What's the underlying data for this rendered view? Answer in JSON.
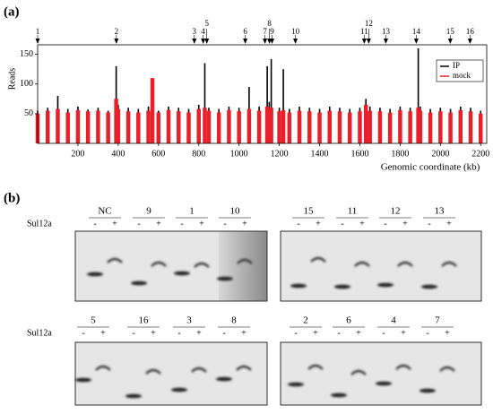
{
  "chart_data": {
    "type": "bar",
    "panel_label": "(a)",
    "xlabel": "Genomic coordinate (kb)",
    "ylabel": "Reads",
    "x": [
      0,
      50,
      100,
      150,
      200,
      250,
      300,
      350,
      390,
      400,
      450,
      500,
      550,
      570,
      600,
      650,
      700,
      750,
      800,
      830,
      850,
      900,
      950,
      1000,
      1050,
      1100,
      1140,
      1150,
      1160,
      1200,
      1220,
      1250,
      1300,
      1350,
      1400,
      1450,
      1500,
      1550,
      1600,
      1630,
      1650,
      1700,
      1750,
      1800,
      1850,
      1890,
      1900,
      1950,
      2000,
      2050,
      2100,
      2150,
      2200
    ],
    "series": [
      {
        "name": "IP",
        "color": "#000000",
        "values": [
          55,
          60,
          80,
          58,
          62,
          57,
          60,
          55,
          130,
          65,
          60,
          58,
          62,
          60,
          55,
          62,
          60,
          58,
          65,
          135,
          60,
          58,
          62,
          60,
          95,
          62,
          130,
          70,
          142,
          60,
          125,
          58,
          62,
          60,
          58,
          62,
          60,
          58,
          60,
          75,
          62,
          60,
          58,
          62,
          60,
          160,
          62,
          58,
          60,
          58,
          62,
          60,
          55
        ]
      },
      {
        "name": "mock",
        "color": "#e8202a",
        "values": [
          50,
          55,
          58,
          52,
          56,
          54,
          55,
          52,
          75,
          58,
          54,
          52,
          55,
          110,
          52,
          56,
          54,
          52,
          58,
          60,
          55,
          52,
          56,
          54,
          58,
          55,
          62,
          58,
          60,
          54,
          56,
          52,
          55,
          54,
          52,
          55,
          54,
          52,
          54,
          65,
          55,
          54,
          52,
          56,
          54,
          60,
          55,
          52,
          54,
          52,
          56,
          54,
          50
        ]
      }
    ],
    "markers": [
      {
        "label": "1",
        "x": 0
      },
      {
        "label": "2",
        "x": 391
      },
      {
        "label": "3",
        "x": 778
      },
      {
        "label": "4",
        "x": 822
      },
      {
        "label": "5",
        "x": 840
      },
      {
        "label": "6",
        "x": 1031
      },
      {
        "label": "7",
        "x": 1129
      },
      {
        "label": "8",
        "x": 1151
      },
      {
        "label": "9",
        "x": 1164
      },
      {
        "label": "10",
        "x": 1280
      },
      {
        "label": "11",
        "x": 1622
      },
      {
        "label": "12",
        "x": 1644
      },
      {
        "label": "13",
        "x": 1729
      },
      {
        "label": "14",
        "x": 1880
      },
      {
        "label": "15",
        "x": 2049
      },
      {
        "label": "16",
        "x": 2147
      }
    ],
    "xlim": [
      0,
      2230
    ],
    "ylim": [
      0,
      166
    ],
    "xticks": [
      200,
      400,
      600,
      800,
      1000,
      1200,
      1400,
      1600,
      1800,
      2000,
      2200
    ],
    "yticks": [
      50,
      100,
      150
    ],
    "legend": "top-right"
  },
  "panel_b": {
    "label": "(b)",
    "condition": "Sul12a",
    "minus": "-",
    "plus": "+",
    "gels": [
      {
        "lanes": [
          "NC",
          "9",
          "1",
          "10"
        ]
      },
      {
        "lanes": [
          "15",
          "11",
          "12",
          "13"
        ]
      },
      {
        "lanes": [
          "5",
          "16",
          "3",
          "8"
        ]
      },
      {
        "lanes": [
          "2",
          "6",
          "4",
          "7"
        ]
      }
    ]
  }
}
